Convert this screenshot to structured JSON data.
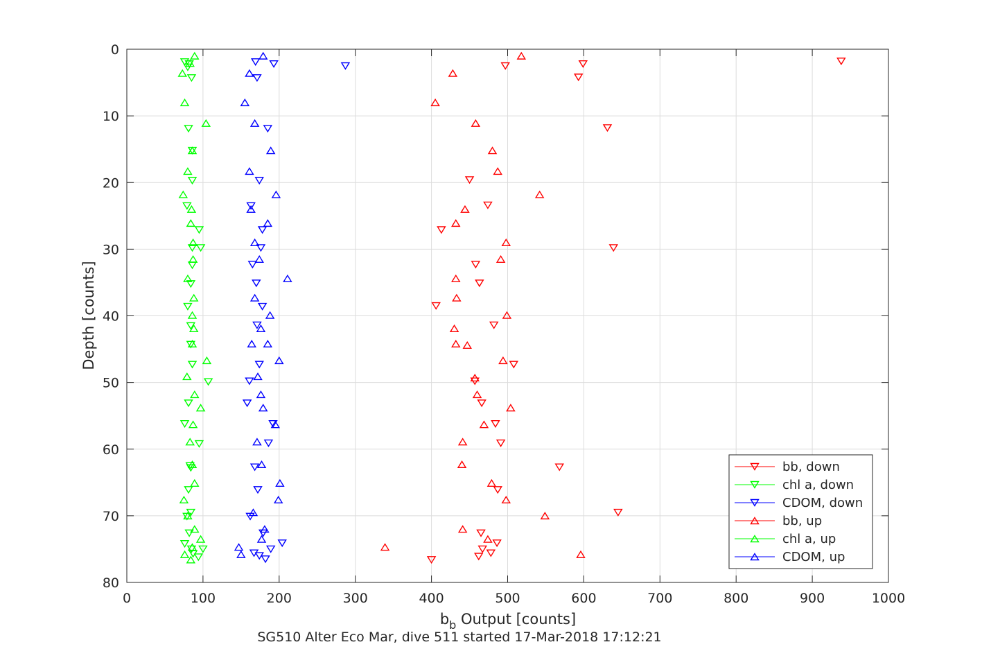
{
  "chart_data": {
    "type": "scatter",
    "title": "SG510 Alter Eco Mar, dive 511 started 17-Mar-2018 17:12:21",
    "xlabel_main": "b",
    "xlabel_sub": "b",
    "xlabel_rest": " Output [counts]",
    "ylabel": "Depth [counts]",
    "xlim": [
      0,
      1000
    ],
    "ylim": [
      0,
      80
    ],
    "y_reversed": true,
    "grid": true,
    "legend_position": "bottom-right",
    "x_ticks": [
      "0",
      "100",
      "200",
      "300",
      "400",
      "500",
      "600",
      "700",
      "800",
      "900",
      "1000"
    ],
    "y_ticks": [
      "0",
      "10",
      "20",
      "30",
      "40",
      "50",
      "60",
      "70",
      "80"
    ],
    "series": [
      {
        "name": "bb, down",
        "color": "#ff0000",
        "marker": "triangle-down",
        "points": [
          [
            938,
            1.8
          ],
          [
            599,
            2.2
          ],
          [
            497,
            2.5
          ],
          [
            593,
            4.2
          ],
          [
            631,
            11.8
          ],
          [
            450,
            19.6
          ],
          [
            474,
            23.4
          ],
          [
            413,
            27.1
          ],
          [
            639,
            29.8
          ],
          [
            458,
            32.3
          ],
          [
            463,
            35.1
          ],
          [
            406,
            38.5
          ],
          [
            482,
            41.4
          ],
          [
            508,
            47.3
          ],
          [
            457,
            49.8
          ],
          [
            466,
            53.1
          ],
          [
            484,
            56.2
          ],
          [
            491,
            59.1
          ],
          [
            568,
            62.7
          ],
          [
            487,
            66.1
          ],
          [
            645,
            69.5
          ],
          [
            465,
            72.6
          ],
          [
            486,
            74.1
          ],
          [
            467,
            75.0
          ],
          [
            478,
            75.6
          ],
          [
            462,
            76.1
          ],
          [
            400,
            76.6
          ]
        ]
      },
      {
        "name": "chl a, down",
        "color": "#00ff00",
        "marker": "triangle-down",
        "points": [
          [
            76,
            1.9
          ],
          [
            82,
            2.2
          ],
          [
            80,
            2.7
          ],
          [
            85,
            4.3
          ],
          [
            81,
            11.9
          ],
          [
            86,
            15.2
          ],
          [
            86,
            19.7
          ],
          [
            79,
            23.5
          ],
          [
            95,
            27.1
          ],
          [
            86,
            29.8
          ],
          [
            97,
            29.8
          ],
          [
            86,
            32.4
          ],
          [
            84,
            35.2
          ],
          [
            80,
            38.6
          ],
          [
            84,
            41.5
          ],
          [
            84,
            44.3
          ],
          [
            86,
            47.3
          ],
          [
            107,
            49.9
          ],
          [
            81,
            53.1
          ],
          [
            76,
            56.2
          ],
          [
            95,
            59.2
          ],
          [
            84,
            62.8
          ],
          [
            83,
            62.5
          ],
          [
            81,
            66.1
          ],
          [
            84,
            69.5
          ],
          [
            79,
            70.1
          ],
          [
            82,
            72.6
          ],
          [
            76,
            74.2
          ],
          [
            85,
            75.0
          ],
          [
            100,
            75.0
          ],
          [
            87,
            75.7
          ],
          [
            94,
            76.2
          ]
        ]
      },
      {
        "name": "CDOM, down",
        "color": "#0000ff",
        "marker": "triangle-down",
        "points": [
          [
            287,
            2.5
          ],
          [
            193,
            2.2
          ],
          [
            169,
            1.9
          ],
          [
            171,
            4.3
          ],
          [
            185,
            11.9
          ],
          [
            174,
            19.7
          ],
          [
            163,
            23.5
          ],
          [
            178,
            27.1
          ],
          [
            176,
            29.8
          ],
          [
            165,
            32.3
          ],
          [
            170,
            35.1
          ],
          [
            178,
            38.6
          ],
          [
            171,
            41.4
          ],
          [
            174,
            47.3
          ],
          [
            161,
            49.8
          ],
          [
            158,
            53.1
          ],
          [
            192,
            56.2
          ],
          [
            186,
            59.1
          ],
          [
            168,
            62.7
          ],
          [
            172,
            66.1
          ],
          [
            162,
            70.1
          ],
          [
            179,
            72.6
          ],
          [
            204,
            74.1
          ],
          [
            189,
            75.0
          ],
          [
            167,
            75.6
          ],
          [
            182,
            76.5
          ],
          [
            174,
            76.0
          ]
        ]
      },
      {
        "name": "bb, up",
        "color": "#ff0000",
        "marker": "triangle-up",
        "points": [
          [
            518,
            1.0
          ],
          [
            428,
            3.6
          ],
          [
            405,
            8.0
          ],
          [
            458,
            11.1
          ],
          [
            480,
            15.2
          ],
          [
            487,
            18.3
          ],
          [
            542,
            21.8
          ],
          [
            444,
            24.0
          ],
          [
            432,
            26.1
          ],
          [
            498,
            29.0
          ],
          [
            491,
            31.5
          ],
          [
            432,
            34.4
          ],
          [
            433,
            37.3
          ],
          [
            499,
            39.9
          ],
          [
            430,
            41.9
          ],
          [
            432,
            44.2
          ],
          [
            447,
            44.4
          ],
          [
            494,
            46.7
          ],
          [
            457,
            49.3
          ],
          [
            460,
            51.8
          ],
          [
            504,
            53.8
          ],
          [
            469,
            56.3
          ],
          [
            441,
            58.9
          ],
          [
            440,
            62.3
          ],
          [
            479,
            65.1
          ],
          [
            498,
            67.6
          ],
          [
            549,
            70.0
          ],
          [
            441,
            72.0
          ],
          [
            474,
            73.5
          ],
          [
            339,
            74.7
          ],
          [
            596,
            75.8
          ]
        ]
      },
      {
        "name": "chl a, up",
        "color": "#00ff00",
        "marker": "triangle-up",
        "points": [
          [
            89,
            1.0
          ],
          [
            83,
            2.1
          ],
          [
            73,
            3.6
          ],
          [
            76,
            8.0
          ],
          [
            104,
            11.1
          ],
          [
            86,
            15.2
          ],
          [
            80,
            18.3
          ],
          [
            74,
            21.8
          ],
          [
            85,
            24.0
          ],
          [
            84,
            26.1
          ],
          [
            87,
            29.0
          ],
          [
            87,
            31.5
          ],
          [
            80,
            34.4
          ],
          [
            88,
            37.3
          ],
          [
            86,
            39.9
          ],
          [
            88,
            41.9
          ],
          [
            86,
            44.2
          ],
          [
            105,
            46.7
          ],
          [
            79,
            49.1
          ],
          [
            89,
            51.8
          ],
          [
            97,
            53.8
          ],
          [
            87,
            56.3
          ],
          [
            83,
            58.9
          ],
          [
            86,
            62.3
          ],
          [
            89,
            65.1
          ],
          [
            75,
            67.6
          ],
          [
            80,
            70.0
          ],
          [
            89,
            72.0
          ],
          [
            97,
            73.5
          ],
          [
            86,
            74.7
          ],
          [
            76,
            75.8
          ],
          [
            84,
            76.6
          ]
        ]
      },
      {
        "name": "CDOM, up",
        "color": "#0000ff",
        "marker": "triangle-up",
        "points": [
          [
            179,
            1.0
          ],
          [
            161,
            3.6
          ],
          [
            155,
            8.0
          ],
          [
            168,
            11.1
          ],
          [
            189,
            15.2
          ],
          [
            161,
            18.3
          ],
          [
            196,
            21.8
          ],
          [
            163,
            24.0
          ],
          [
            185,
            26.1
          ],
          [
            168,
            29.0
          ],
          [
            174,
            31.5
          ],
          [
            211,
            34.4
          ],
          [
            168,
            37.3
          ],
          [
            188,
            39.9
          ],
          [
            176,
            41.9
          ],
          [
            164,
            44.2
          ],
          [
            185,
            44.2
          ],
          [
            200,
            46.7
          ],
          [
            172,
            49.1
          ],
          [
            176,
            51.8
          ],
          [
            179,
            53.8
          ],
          [
            195,
            56.3
          ],
          [
            171,
            58.9
          ],
          [
            177,
            62.3
          ],
          [
            201,
            65.1
          ],
          [
            199,
            67.6
          ],
          [
            166,
            69.5
          ],
          [
            181,
            72.0
          ],
          [
            177,
            73.5
          ],
          [
            147,
            74.7
          ],
          [
            150,
            75.8
          ]
        ]
      }
    ]
  }
}
